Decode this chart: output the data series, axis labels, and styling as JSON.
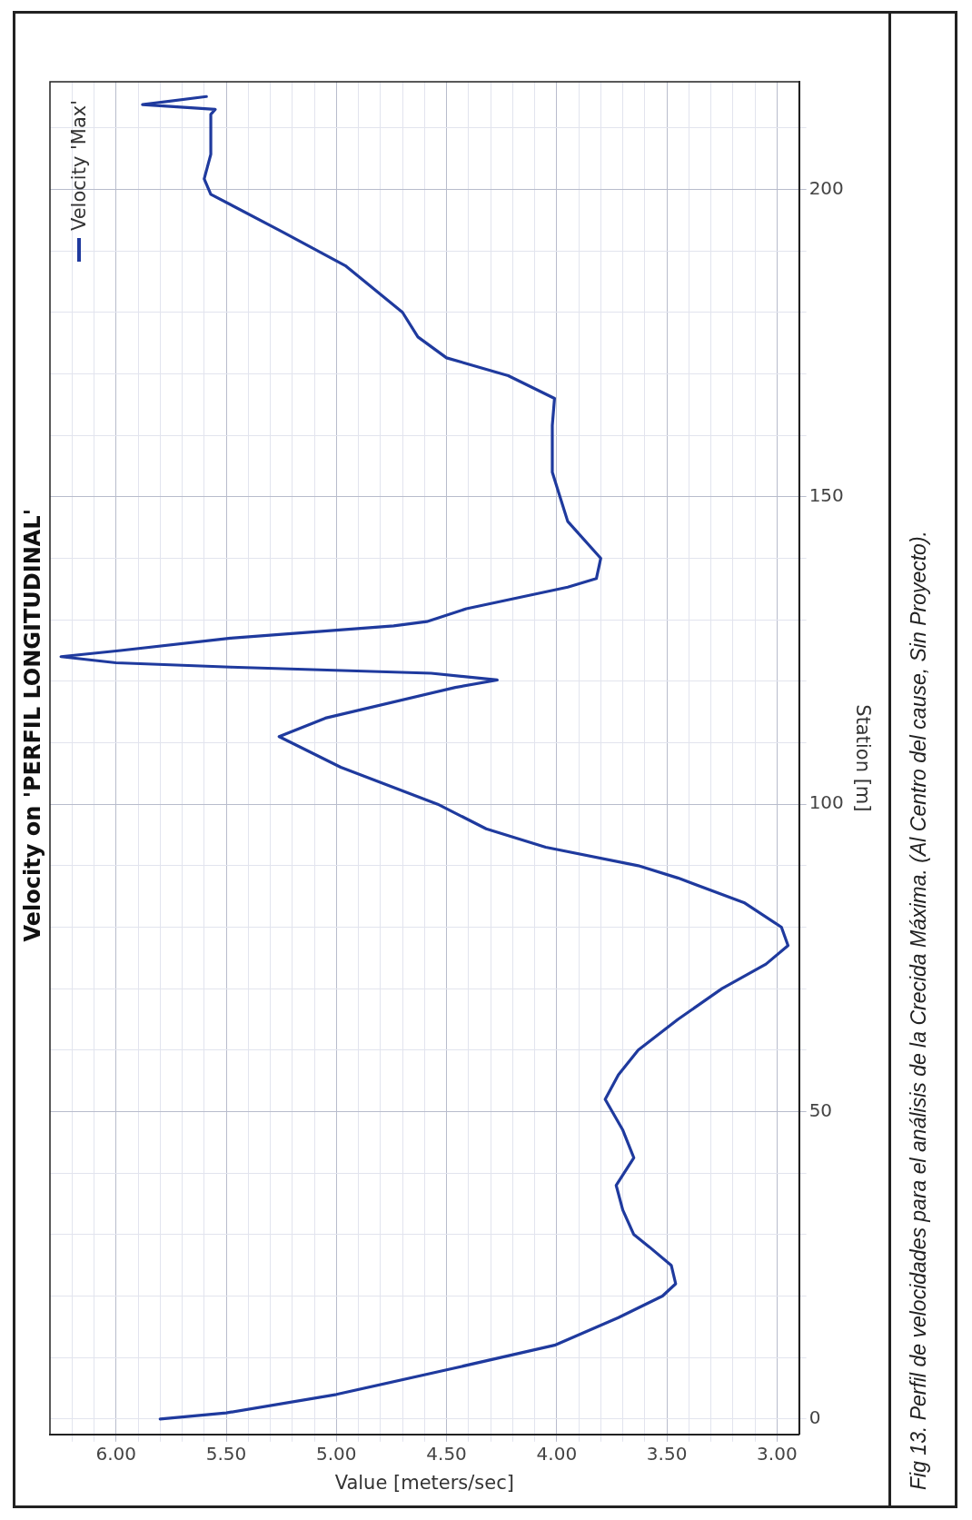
{
  "chart_data": {
    "type": "line",
    "title": "Velocity on 'PERFIL LONGITUDINAL'",
    "xlabel": "Value [meters/sec]",
    "ylabel": "Station [m]",
    "x": [
      5.8,
      5.5,
      5.0,
      4.5,
      4.01,
      3.72,
      3.52,
      3.46,
      3.48,
      3.58,
      3.65,
      3.7,
      3.73,
      3.65,
      3.7,
      3.78,
      3.72,
      3.63,
      3.45,
      3.25,
      3.05,
      2.95,
      2.98,
      3.15,
      3.45,
      3.63,
      4.05,
      4.32,
      4.54,
      4.98,
      5.26,
      5.05,
      4.46,
      4.27,
      4.57,
      5.48,
      6.0,
      6.25,
      5.98,
      5.48,
      4.74,
      4.59,
      4.41,
      3.95,
      3.82,
      3.8,
      3.95,
      3.98,
      4.02,
      4.02,
      4.01,
      4.22,
      4.5,
      4.63,
      4.7,
      4.96,
      5.24,
      5.57,
      5.6,
      5.57,
      5.57,
      5.55,
      5.88,
      5.59
    ],
    "series": [
      {
        "name": "Velocity 'Max'",
        "color": "#1f3a9e",
        "values": [
          0,
          1,
          4,
          8,
          12,
          16.5,
          20,
          22,
          25,
          28,
          30,
          34,
          38,
          42.5,
          47,
          52,
          56,
          60,
          65,
          70,
          74,
          77,
          80,
          84,
          88,
          90,
          93,
          96,
          100,
          106,
          111,
          114,
          119,
          120.2,
          121.3,
          122.3,
          123,
          124,
          125,
          127,
          129,
          129.7,
          131.8,
          135.3,
          136.7,
          140,
          146,
          149.4,
          154,
          161.6,
          166,
          169.7,
          172.6,
          176,
          180,
          187.6,
          193,
          199.2,
          201.7,
          205.7,
          212.2,
          213,
          213.8,
          215.1
        ]
      }
    ],
    "ylim": [
      -2.5,
      217.5
    ],
    "yticks": [
      0,
      {
        "value": 10,
        "label": null
      },
      {
        "value": 20,
        "label": null
      },
      {
        "value": 30,
        "label": null
      },
      {
        "value": 40,
        "label": null
      },
      50,
      {
        "value": 60,
        "label": null
      },
      {
        "value": 70,
        "label": null
      },
      {
        "value": 80,
        "label": null
      },
      {
        "value": 90,
        "label": null
      },
      100,
      {
        "value": 110,
        "label": null
      },
      {
        "value": 120,
        "label": null
      },
      {
        "value": 130,
        "label": null
      },
      {
        "value": 140,
        "label": null
      },
      150,
      {
        "value": 160,
        "label": null
      },
      {
        "value": 170,
        "label": null
      },
      {
        "value": 180,
        "label": null
      },
      {
        "value": 190,
        "label": null
      },
      200,
      {
        "value": 210,
        "label": null
      }
    ],
    "xlim": [
      6.3,
      2.9
    ],
    "xticks": [
      {
        "value": 3,
        "label": "3.00"
      },
      {
        "value": 3.1,
        "label": null
      },
      {
        "value": 3.2,
        "label": null
      },
      {
        "value": 3.3,
        "label": null
      },
      {
        "value": 3.4,
        "label": null
      },
      {
        "value": 3.5,
        "label": "3.50"
      },
      {
        "value": 3.6,
        "label": null
      },
      {
        "value": 3.7,
        "label": null
      },
      {
        "value": 3.8,
        "label": null
      },
      {
        "value": 3.9,
        "label": null
      },
      {
        "value": 4,
        "label": "4.00"
      },
      {
        "value": 4.1,
        "label": null
      },
      {
        "value": 4.2,
        "label": null
      },
      {
        "value": 4.3,
        "label": null
      },
      {
        "value": 4.4,
        "label": null
      },
      {
        "value": 4.5,
        "label": "4.50"
      },
      {
        "value": 4.6,
        "label": null
      },
      {
        "value": 4.7,
        "label": null
      },
      {
        "value": 4.8,
        "label": null
      },
      {
        "value": 4.9,
        "label": null
      },
      {
        "value": 5,
        "label": "5.00"
      },
      {
        "value": 5.1,
        "label": null
      },
      {
        "value": 5.2,
        "label": null
      },
      {
        "value": 5.3,
        "label": null
      },
      {
        "value": 5.4,
        "label": null
      },
      {
        "value": 5.5,
        "label": "5.50"
      },
      {
        "value": 5.6,
        "label": null
      },
      {
        "value": 5.7,
        "label": null
      },
      {
        "value": 5.8,
        "label": null
      },
      {
        "value": 5.9,
        "label": null
      },
      {
        "value": 6,
        "label": "6.00"
      },
      {
        "value": 6.1,
        "label": null
      },
      {
        "value": 6.2,
        "label": null
      }
    ],
    "grid": true,
    "legend": "top left",
    "marker": "none",
    "line_style": "solid",
    "annotations": [
      "Fig 13. Perfil de velocidades para el análisis de la Crecida Máxima.  (Al Centro del cause, Sin Proyecto)."
    ]
  }
}
